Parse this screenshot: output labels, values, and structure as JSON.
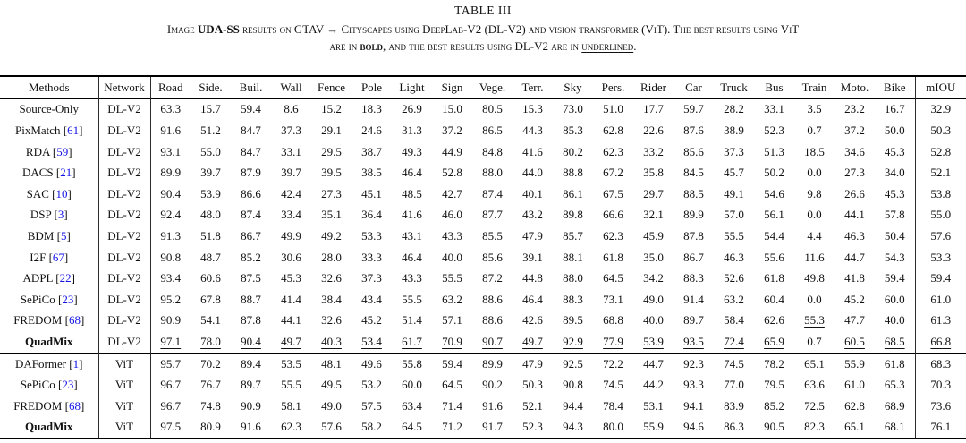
{
  "page": {
    "title": "TABLE III"
  },
  "colors": {
    "citation_blue": "#1414e6",
    "text": "#111111",
    "rule": "#000000"
  },
  "caption": {
    "line1": [
      {
        "text": "Image ",
        "bold": false,
        "underline": false
      },
      {
        "text": "UDA-SS",
        "bold": true,
        "underline": false
      },
      {
        "text": " results on GTAV → Cityscapes using DeepLab-V2 (DL-V2) and vision transformer (ViT). The best results using ViT",
        "bold": false,
        "underline": false
      }
    ],
    "line2": [
      {
        "text": "are in ",
        "bold": false,
        "underline": false
      },
      {
        "text": "bold",
        "bold": true,
        "underline": false
      },
      {
        "text": ", and the best results using DL-V2 are in ",
        "bold": false,
        "underline": false
      },
      {
        "text": "underlined",
        "bold": false,
        "underline": true
      },
      {
        "text": ".",
        "bold": false,
        "underline": false
      }
    ]
  },
  "chart_data": {
    "type": "table",
    "title": "TABLE III — Image UDA-SS results on GTAV → Cityscapes (per-class IoU and mIOU)"
  },
  "table": {
    "columns": [
      "Methods",
      "Network",
      "Road",
      "Side.",
      "Buil.",
      "Wall",
      "Fence",
      "Pole",
      "Light",
      "Sign",
      "Vege.",
      "Terr.",
      "Sky",
      "Pers.",
      "Rider",
      "Car",
      "Truck",
      "Bus",
      "Train",
      "Moto.",
      "Bike",
      "mIOU"
    ],
    "rows": [
      {
        "method": "Source-Only",
        "cite": null,
        "method_bold": false,
        "network": "DL-V2",
        "block_end": false,
        "values": [
          "63.3",
          "15.7",
          "59.4",
          "8.6",
          "15.2",
          "18.3",
          "26.9",
          "15.0",
          "80.5",
          "15.3",
          "73.0",
          "51.0",
          "17.7",
          "59.7",
          "28.2",
          "33.1",
          "3.5",
          "23.2",
          "16.7",
          "32.9"
        ],
        "bold": [],
        "underline": []
      },
      {
        "method": "PixMatch",
        "cite": "61",
        "method_bold": false,
        "network": "DL-V2",
        "block_end": false,
        "values": [
          "91.6",
          "51.2",
          "84.7",
          "37.3",
          "29.1",
          "24.6",
          "31.3",
          "37.2",
          "86.5",
          "44.3",
          "85.3",
          "62.8",
          "22.6",
          "87.6",
          "38.9",
          "52.3",
          "0.7",
          "37.2",
          "50.0",
          "50.3"
        ],
        "bold": [],
        "underline": []
      },
      {
        "method": "RDA",
        "cite": "59",
        "method_bold": false,
        "network": "DL-V2",
        "block_end": false,
        "values": [
          "93.1",
          "55.0",
          "84.7",
          "33.1",
          "29.5",
          "38.7",
          "49.3",
          "44.9",
          "84.8",
          "41.6",
          "80.2",
          "62.3",
          "33.2",
          "85.6",
          "37.3",
          "51.3",
          "18.5",
          "34.6",
          "45.3",
          "52.8"
        ],
        "bold": [],
        "underline": []
      },
      {
        "method": "DACS",
        "cite": "21",
        "method_bold": false,
        "network": "DL-V2",
        "block_end": false,
        "values": [
          "89.9",
          "39.7",
          "87.9",
          "39.7",
          "39.5",
          "38.5",
          "46.4",
          "52.8",
          "88.0",
          "44.0",
          "88.8",
          "67.2",
          "35.8",
          "84.5",
          "45.7",
          "50.2",
          "0.0",
          "27.3",
          "34.0",
          "52.1"
        ],
        "bold": [],
        "underline": []
      },
      {
        "method": "SAC",
        "cite": "10",
        "method_bold": false,
        "network": "DL-V2",
        "block_end": false,
        "values": [
          "90.4",
          "53.9",
          "86.6",
          "42.4",
          "27.3",
          "45.1",
          "48.5",
          "42.7",
          "87.4",
          "40.1",
          "86.1",
          "67.5",
          "29.7",
          "88.5",
          "49.1",
          "54.6",
          "9.8",
          "26.6",
          "45.3",
          "53.8"
        ],
        "bold": [],
        "underline": []
      },
      {
        "method": "DSP",
        "cite": "3",
        "method_bold": false,
        "network": "DL-V2",
        "block_end": false,
        "values": [
          "92.4",
          "48.0",
          "87.4",
          "33.4",
          "35.1",
          "36.4",
          "41.6",
          "46.0",
          "87.7",
          "43.2",
          "89.8",
          "66.6",
          "32.1",
          "89.9",
          "57.0",
          "56.1",
          "0.0",
          "44.1",
          "57.8",
          "55.0"
        ],
        "bold": [],
        "underline": []
      },
      {
        "method": "BDM",
        "cite": "5",
        "method_bold": false,
        "network": "DL-V2",
        "block_end": false,
        "values": [
          "91.3",
          "51.8",
          "86.7",
          "49.9",
          "49.2",
          "53.3",
          "43.1",
          "43.3",
          "85.5",
          "47.9",
          "85.7",
          "62.3",
          "45.9",
          "87.8",
          "55.5",
          "54.4",
          "4.4",
          "46.3",
          "50.4",
          "57.6"
        ],
        "bold": [],
        "underline": []
      },
      {
        "method": "I2F",
        "cite": "67",
        "method_bold": false,
        "network": "DL-V2",
        "block_end": false,
        "values": [
          "90.8",
          "48.7",
          "85.2",
          "30.6",
          "28.0",
          "33.3",
          "46.4",
          "40.0",
          "85.6",
          "39.1",
          "88.1",
          "61.8",
          "35.0",
          "86.7",
          "46.3",
          "55.6",
          "11.6",
          "44.7",
          "54.3",
          "53.3"
        ],
        "bold": [],
        "underline": []
      },
      {
        "method": "ADPL",
        "cite": "22",
        "method_bold": false,
        "network": "DL-V2",
        "block_end": false,
        "values": [
          "93.4",
          "60.6",
          "87.5",
          "45.3",
          "32.6",
          "37.3",
          "43.3",
          "55.5",
          "87.2",
          "44.8",
          "88.0",
          "64.5",
          "34.2",
          "88.3",
          "52.6",
          "61.8",
          "49.8",
          "41.8",
          "59.4",
          "59.4"
        ],
        "bold": [],
        "underline": []
      },
      {
        "method": "SePiCo",
        "cite": "23",
        "method_bold": false,
        "network": "DL-V2",
        "block_end": false,
        "values": [
          "95.2",
          "67.8",
          "88.7",
          "41.4",
          "38.4",
          "43.4",
          "55.5",
          "63.2",
          "88.6",
          "46.4",
          "88.3",
          "73.1",
          "49.0",
          "91.4",
          "63.2",
          "60.4",
          "0.0",
          "45.2",
          "60.0",
          "61.0"
        ],
        "bold": [],
        "underline": []
      },
      {
        "method": "FREDOM",
        "cite": "68",
        "method_bold": false,
        "network": "DL-V2",
        "block_end": false,
        "values": [
          "90.9",
          "54.1",
          "87.8",
          "44.1",
          "32.6",
          "45.2",
          "51.4",
          "57.1",
          "88.6",
          "42.6",
          "89.5",
          "68.8",
          "40.0",
          "89.7",
          "58.4",
          "62.6",
          "55.3",
          "47.7",
          "40.0",
          "61.3"
        ],
        "bold": [],
        "underline": [
          16
        ]
      },
      {
        "method": "QuadMix",
        "cite": null,
        "method_bold": true,
        "network": "DL-V2",
        "block_end": true,
        "values": [
          "97.1",
          "78.0",
          "90.4",
          "49.7",
          "40.3",
          "53.4",
          "61.7",
          "70.9",
          "90.7",
          "49.7",
          "92.9",
          "77.9",
          "53.9",
          "93.5",
          "72.4",
          "65.9",
          "0.7",
          "60.5",
          "68.5",
          "66.8"
        ],
        "bold": [],
        "underline": [
          0,
          1,
          2,
          3,
          4,
          5,
          6,
          7,
          8,
          9,
          10,
          11,
          12,
          13,
          14,
          15,
          17,
          18,
          19
        ]
      },
      {
        "method": "DAFormer",
        "cite": "1",
        "method_bold": false,
        "network": "ViT",
        "block_end": false,
        "values": [
          "95.7",
          "70.2",
          "89.4",
          "53.5",
          "48.1",
          "49.6",
          "55.8",
          "59.4",
          "89.9",
          "47.9",
          "92.5",
          "72.2",
          "44.7",
          "92.3",
          "74.5",
          "78.2",
          "65.1",
          "55.9",
          "61.8",
          "68.3"
        ],
        "bold": [],
        "underline": []
      },
      {
        "method": "SePiCo",
        "cite": "23",
        "method_bold": false,
        "network": "ViT",
        "block_end": false,
        "values": [
          "96.7",
          "76.7",
          "89.7",
          "55.5",
          "49.5",
          "53.2",
          "60.0",
          "64.5",
          "90.2",
          "50.3",
          "90.8",
          "74.5",
          "44.2",
          "93.3",
          "77.0",
          "79.5",
          "63.6",
          "61.0",
          "65.3",
          "70.3"
        ],
        "bold": [],
        "underline": []
      },
      {
        "method": "FREDOM",
        "cite": "68",
        "method_bold": false,
        "network": "ViT",
        "block_end": false,
        "values": [
          "96.7",
          "74.8",
          "90.9",
          "58.1",
          "49.0",
          "57.5",
          "63.4",
          "71.4",
          "91.6",
          "52.1",
          "94.4",
          "78.4",
          "53.1",
          "94.1",
          "83.9",
          "85.2",
          "72.5",
          "62.8",
          "68.9",
          "73.6"
        ],
        "bold": [
          7,
          10,
          18
        ],
        "underline": []
      },
      {
        "method": "QuadMix",
        "cite": null,
        "method_bold": true,
        "network": "ViT",
        "block_end": false,
        "values": [
          "97.5",
          "80.9",
          "91.6",
          "62.3",
          "57.6",
          "58.2",
          "64.5",
          "71.2",
          "91.7",
          "52.3",
          "94.3",
          "80.0",
          "55.9",
          "94.6",
          "86.3",
          "90.5",
          "82.3",
          "65.1",
          "68.1",
          "76.1"
        ],
        "bold": [
          0,
          1,
          2,
          3,
          4,
          5,
          6,
          8,
          9,
          11,
          12,
          13,
          14,
          15,
          16,
          17,
          19
        ],
        "underline": []
      }
    ]
  }
}
